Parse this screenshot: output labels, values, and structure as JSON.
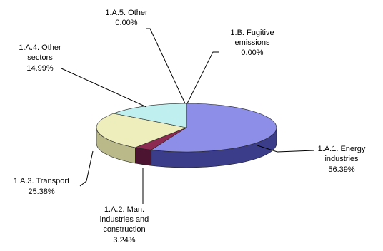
{
  "chart_data": {
    "type": "pie",
    "title": "",
    "slices": [
      {
        "id": "energy",
        "label_lines": [
          "1.A.1. Energy",
          "industries"
        ],
        "value_text": "56.39%",
        "value": 56.39,
        "color": "#8c8ee8",
        "side_color": "#3b3d8a"
      },
      {
        "id": "man",
        "label_lines": [
          "1.A.2. Man.",
          "industries and",
          "construction"
        ],
        "value_text": "3.24%",
        "value": 3.24,
        "color": "#8c2a52",
        "side_color": "#4c1430"
      },
      {
        "id": "transport",
        "label_lines": [
          "1.A.3. Transport"
        ],
        "value_text": "25.38%",
        "value": 25.38,
        "color": "#eeeebd",
        "side_color": "#b9b98a"
      },
      {
        "id": "other-sectors",
        "label_lines": [
          "1.A.4. Other",
          "sectors"
        ],
        "value_text": "14.99%",
        "value": 14.99,
        "color": "#bfefee",
        "side_color": "#86b8b8"
      },
      {
        "id": "other",
        "label_lines": [
          "1.A.5. Other"
        ],
        "value_text": "0.00%",
        "value": 0.0,
        "color": "#cccccc",
        "side_color": "#888888"
      },
      {
        "id": "fugitive",
        "label_lines": [
          "1.B. Fugitive",
          "emissions"
        ],
        "value_text": "0.00%",
        "value": 0.0,
        "color": "#cccccc",
        "side_color": "#888888"
      }
    ]
  }
}
